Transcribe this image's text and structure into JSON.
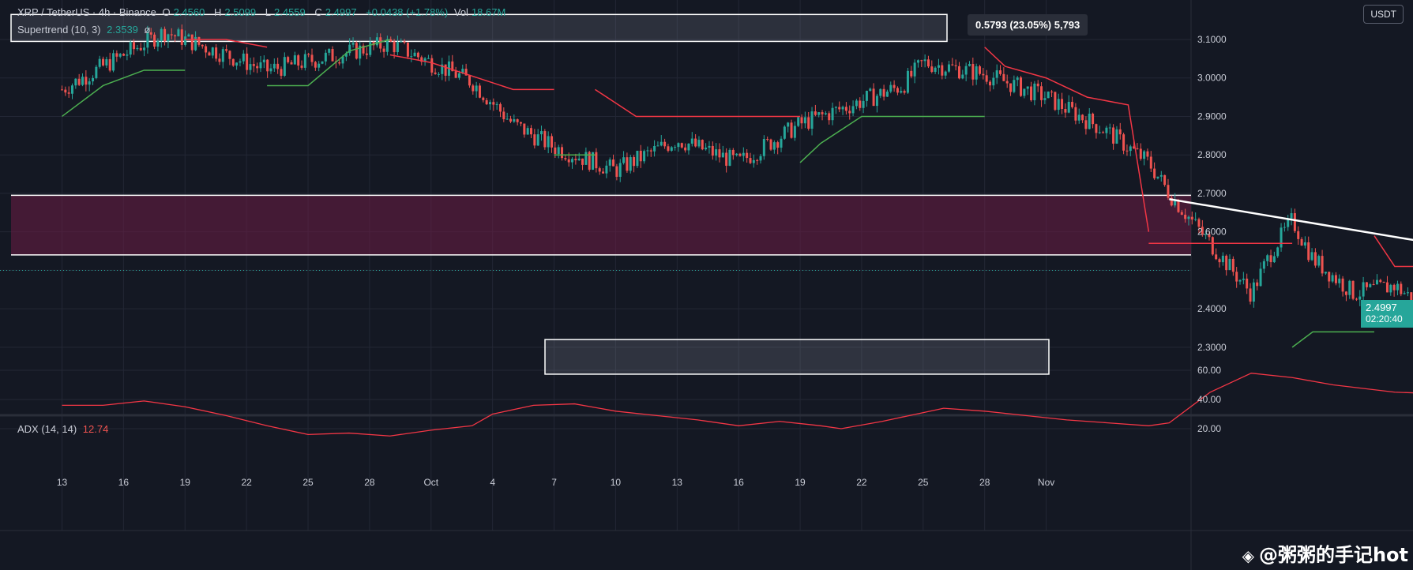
{
  "header": {
    "symbol": "XRP / TetherUS · 4h · Binance",
    "ohlc": [
      {
        "label": "O",
        "value": "2.4560"
      },
      {
        "label": "H",
        "value": "2.5099"
      },
      {
        "label": "L",
        "value": "2.4559"
      },
      {
        "label": "C",
        "value": "2.4997"
      }
    ],
    "change": "+0.0438 (+1.78%)",
    "volume_label": "Vol",
    "volume_value": "18.67M"
  },
  "indicators": {
    "supertrend_label": "Supertrend (10, 3)",
    "supertrend_value": "2.3539",
    "supertrend_extra": "ø",
    "adx_label": "ADX (14, 14)",
    "adx_value": "12.74"
  },
  "currency_button": "USDT",
  "measure_label": "0.5793 (23.05%) 5,793",
  "last_price": {
    "value": "2.4997",
    "countdown": "02:20:40"
  },
  "watermark": "@粥粥的手记hot",
  "colors": {
    "up": "#26a69a",
    "down": "#ef5350",
    "supertrend_up": "#4caf50",
    "supertrend_down": "#f23645",
    "adx": "#f23645",
    "zone": "#6b1d45",
    "measure": "#2962ff",
    "background": "#141823"
  },
  "chart_data": [
    {
      "type": "candlestick",
      "title": "XRP / TetherUS · 4h · Binance",
      "x_tick_labels": [
        "13",
        "16",
        "19",
        "22",
        "25",
        "28",
        "Oct",
        "4",
        "7",
        "10",
        "13",
        "16",
        "19",
        "22",
        "25",
        "28",
        "Nov"
      ],
      "y_tick_labels": [
        "3.1000",
        "3.0000",
        "2.9000",
        "2.8000",
        "2.7000",
        "2.6000",
        "2.4000",
        "2.3000"
      ],
      "ylim": [
        2.245,
        3.195
      ],
      "grid": true,
      "price_path": [
        [
          0,
          2.97
        ],
        [
          5,
          3.12
        ],
        [
          10,
          3.02
        ],
        [
          16,
          3.09
        ],
        [
          20,
          2.99
        ],
        [
          22,
          2.88
        ],
        [
          24,
          2.82
        ],
        [
          27,
          2.76
        ],
        [
          30,
          2.84
        ],
        [
          33,
          2.78
        ],
        [
          36,
          2.88
        ],
        [
          41,
          2.98
        ],
        [
          42,
          3.04
        ],
        [
          45,
          3.01
        ],
        [
          48,
          2.95
        ],
        [
          51,
          2.86
        ],
        [
          53,
          2.78
        ],
        [
          54,
          2.7
        ],
        [
          56,
          2.57
        ],
        [
          58,
          2.44
        ],
        [
          59,
          2.55
        ],
        [
          60,
          2.63
        ],
        [
          61,
          2.53
        ],
        [
          63,
          2.44
        ],
        [
          65,
          2.46
        ],
        [
          67,
          2.38
        ],
        [
          68,
          2.32
        ],
        [
          69,
          2.33
        ],
        [
          70,
          2.39
        ],
        [
          72,
          2.44
        ],
        [
          73,
          2.52
        ],
        [
          74,
          2.48
        ],
        [
          75,
          2.43
        ],
        [
          77,
          2.39
        ],
        [
          78,
          2.44
        ],
        [
          79,
          2.4997
        ]
      ],
      "candle_range_days": [
        0,
        79
      ],
      "last_close": 2.4997,
      "supertrend": [
        {
          "trend": "up",
          "points": [
            [
              0,
              2.9
            ],
            [
              2,
              2.98
            ],
            [
              4,
              3.02
            ],
            [
              6,
              3.02
            ]
          ]
        },
        {
          "trend": "down",
          "points": [
            [
              6,
              3.1
            ],
            [
              8,
              3.1
            ],
            [
              10,
              3.08
            ]
          ]
        },
        {
          "trend": "up",
          "points": [
            [
              10,
              2.98
            ],
            [
              12,
              2.98
            ],
            [
              14,
              3.07
            ],
            [
              16,
              3.1
            ]
          ]
        },
        {
          "trend": "down",
          "points": [
            [
              16,
              3.06
            ],
            [
              18,
              3.04
            ],
            [
              22,
              2.97
            ],
            [
              24,
              2.97
            ]
          ]
        },
        {
          "trend": "up",
          "points": [
            [
              24,
              2.8
            ],
            [
              26,
              2.8
            ]
          ]
        },
        {
          "trend": "down",
          "points": [
            [
              26,
              2.97
            ],
            [
              28,
              2.9
            ],
            [
              32,
              2.9
            ],
            [
              36,
              2.9
            ]
          ]
        },
        {
          "trend": "up",
          "points": [
            [
              36,
              2.78
            ],
            [
              37,
              2.83
            ],
            [
              39,
              2.9
            ],
            [
              45,
              2.9
            ]
          ]
        },
        {
          "trend": "down",
          "points": [
            [
              45,
              3.08
            ],
            [
              46,
              3.03
            ],
            [
              48,
              3.0
            ],
            [
              50,
              2.95
            ],
            [
              52,
              2.93
            ],
            [
              53,
              2.6
            ]
          ]
        },
        {
          "trend": "down",
          "points": [
            [
              53,
              2.57
            ],
            [
              59,
              2.57
            ],
            [
              60,
              2.57
            ]
          ]
        },
        {
          "trend": "up",
          "points": [
            [
              60,
              2.3
            ],
            [
              61,
              2.34
            ],
            [
              64,
              2.34
            ]
          ]
        },
        {
          "trend": "down",
          "points": [
            [
              64,
              2.59
            ],
            [
              65,
              2.51
            ],
            [
              69,
              2.51
            ],
            [
              70,
              2.51
            ]
          ]
        },
        {
          "trend": "up",
          "points": [
            [
              70,
              2.34
            ],
            [
              71,
              2.35
            ],
            [
              76,
              2.35
            ],
            [
              77,
              2.37
            ]
          ]
        }
      ],
      "resistance_zone": [
        2.54,
        2.695
      ],
      "upper_zone": [
        3.095,
        3.165
      ],
      "support_zone": [
        2.23,
        2.32
      ],
      "trendline": [
        [
          54,
          2.685
        ],
        [
          91,
          2.355
        ]
      ],
      "projection_path": [
        [
          79,
          2.51
        ],
        [
          80,
          2.675
        ],
        [
          82,
          2.64
        ],
        [
          85,
          3.08
        ],
        [
          87,
          3.035
        ]
      ],
      "measure": {
        "x": 82,
        "from": 2.515,
        "to": 3.095
      }
    },
    {
      "type": "line",
      "title": "ADX (14, 14)",
      "y_tick_labels": [
        "60.00",
        "40.00",
        "20.00"
      ],
      "ylim": [
        13,
        62
      ],
      "grid": true,
      "series": [
        {
          "name": "ADX (14, 14)",
          "points": [
            [
              0,
              36
            ],
            [
              2,
              36
            ],
            [
              4,
              39
            ],
            [
              6,
              35
            ],
            [
              8,
              29
            ],
            [
              10,
              22
            ],
            [
              12,
              16
            ],
            [
              14,
              17
            ],
            [
              16,
              15
            ],
            [
              18,
              19
            ],
            [
              20,
              22
            ],
            [
              21,
              30
            ],
            [
              23,
              36
            ],
            [
              25,
              37
            ],
            [
              27,
              32
            ],
            [
              29,
              29
            ],
            [
              31,
              26
            ],
            [
              33,
              22
            ],
            [
              35,
              25
            ],
            [
              37,
              22
            ],
            [
              38,
              20
            ],
            [
              40,
              25
            ],
            [
              43,
              34
            ],
            [
              45,
              32
            ],
            [
              47,
              29
            ],
            [
              49,
              26
            ],
            [
              51,
              24
            ],
            [
              53,
              22
            ],
            [
              54,
              24
            ],
            [
              56,
              45
            ],
            [
              58,
              58
            ],
            [
              60,
              55
            ],
            [
              62,
              50
            ],
            [
              65,
              45
            ],
            [
              67,
              44
            ],
            [
              69,
              40
            ],
            [
              71,
              32
            ],
            [
              73,
              25
            ],
            [
              75,
              19
            ],
            [
              77,
              15
            ],
            [
              79,
              13
            ]
          ]
        }
      ]
    }
  ]
}
